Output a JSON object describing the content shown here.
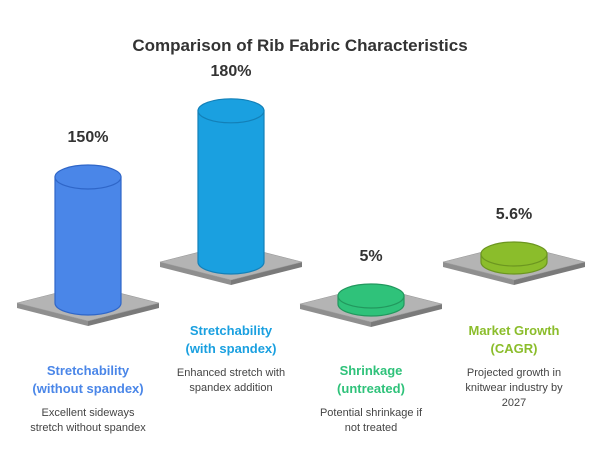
{
  "chart_data": {
    "type": "bar",
    "title": "Comparison of Rib Fabric Characteristics",
    "categories": [
      "Stretchability (without spandex)",
      "Stretchability (with spandex)",
      "Shrinkage (untreated)",
      "Market Growth (CAGR)"
    ],
    "values": [
      150,
      180,
      5,
      5.6
    ],
    "value_labels": [
      "150%",
      "180%",
      "5%",
      "5.6%"
    ],
    "labels": [
      [
        "Stretchability",
        "(without spandex)"
      ],
      [
        "Stretchability",
        "(with spandex)"
      ],
      [
        "Shrinkage",
        "(untreated)"
      ],
      [
        "Market Growth",
        "(CAGR)"
      ]
    ],
    "descriptions": [
      [
        "Excellent sideways",
        "stretch without spandex"
      ],
      [
        "Enhanced stretch with",
        "spandex addition"
      ],
      [
        "Potential shrinkage if",
        "not treated"
      ],
      [
        "Projected growth in",
        "knitwear industry by",
        "2027"
      ]
    ],
    "colors": [
      "#4a86e8",
      "#1aa0e0",
      "#2fc27a",
      "#8bbd2b"
    ],
    "dark_colors": [
      "#2f66c8",
      "#1380b8",
      "#22985e",
      "#6c9620"
    ],
    "xlabel": "",
    "ylabel": "",
    "grid": false,
    "legend": "none"
  }
}
